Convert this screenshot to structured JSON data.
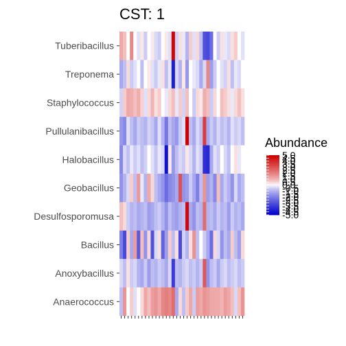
{
  "chart_data": {
    "type": "heatmap",
    "title": "CST: 1",
    "xlabel": "",
    "ylabel": "",
    "rows": [
      "Tuberibacillus",
      "Treponema",
      "Staphylococcus",
      "Pullulanibacillus",
      "Halobacillus",
      "Geobacillus",
      "Desulfosporomusa",
      "Bacillus",
      "Anoxybacillus",
      "Anaerococcus"
    ],
    "n_columns": 36,
    "values": [
      [
        1.2,
        0.8,
        0,
        1.8,
        0,
        -0.3,
        0.2,
        -0.6,
        0,
        0.2,
        -0.4,
        -0.6,
        0,
        0.2,
        -0.3,
        4.8,
        -0.5,
        0.3,
        -0.2,
        -1,
        0.6,
        -0.3,
        0.4,
        -0.8,
        -3,
        -3.2,
        -2.4,
        0,
        -0.6,
        0.3,
        -0.2,
        -0.4,
        0.3,
        0.6,
        0,
        -0.3
      ],
      [
        -1.2,
        -0.8,
        0.4,
        -0.6,
        -0.3,
        0,
        -0.8,
        0,
        0.2,
        -0.3,
        -0.6,
        -0.2,
        0.3,
        -0.8,
        -0.2,
        -4.2,
        -0.4,
        -1,
        0.2,
        -1.5,
        0,
        -0.2,
        -0.4,
        -1.2,
        -0.4,
        1.8,
        -1.4,
        -0.6,
        0,
        -0.3,
        -0.5,
        0.3,
        -0.8,
        -0.2,
        -0.4,
        0
      ],
      [
        -0.5,
        0.6,
        1.2,
        1.1,
        0.8,
        1.1,
        0.5,
        -0.3,
        0.4,
        1,
        0.3,
        0.6,
        0,
        -0.2,
        0.4,
        0.8,
        -0.2,
        0.6,
        -0.5,
        0.8,
        0,
        -0.6,
        0.4,
        0.2,
        1.1,
        0.8,
        -0.6,
        0.4,
        0,
        0.8,
        0.6,
        0.3,
        -0.2,
        0.4,
        0.8,
        0.3
      ],
      [
        -1.5,
        -1.8,
        -0.3,
        -0.8,
        -1.2,
        -0.6,
        -0.8,
        -1,
        -0.5,
        -0.7,
        -1.2,
        -0.3,
        -1,
        -2.2,
        -0.8,
        -1.2,
        -1.5,
        -0.6,
        -0.3,
        5,
        -0.8,
        -1.2,
        -0.4,
        -0.8,
        3.5,
        -1.2,
        -0.6,
        -1,
        -0.4,
        -0.8,
        -0.6,
        -1,
        -0.3,
        -0.6,
        -0.4,
        -0.8
      ],
      [
        -1.8,
        -0.4,
        -0.8,
        -0.2,
        -0.6,
        -0.3,
        -0.8,
        -0.5,
        0,
        -0.3,
        -0.7,
        -0.2,
        -0.4,
        -4.5,
        0.2,
        -1.5,
        -0.8,
        -0.4,
        -0.6,
        0.2,
        -0.4,
        -1,
        -0.3,
        -0.6,
        -3.8,
        -4,
        -1.2,
        -0.3,
        -0.6,
        0,
        -0.4,
        -0.8,
        0,
        0.3,
        -0.2,
        0
      ],
      [
        -1.6,
        -1,
        -0.4,
        0.6,
        -0.8,
        1.5,
        -0.2,
        -1,
        1.2,
        0.4,
        -0.8,
        -1.2,
        -1.6,
        -2.4,
        -1.8,
        -1.6,
        -1.2,
        3,
        -1.6,
        -1.4,
        -0.6,
        -1.2,
        -2,
        -0.8,
        1.6,
        -1.4,
        -1,
        -1.8,
        0.8,
        -1.2,
        -0.6,
        -1,
        -1.6,
        -0.4,
        -1.2,
        -0.8
      ],
      [
        0.8,
        0.4,
        -0.6,
        -1,
        -0.8,
        -1.2,
        -1,
        -0.8,
        -1.4,
        -1.2,
        -0.8,
        -0.6,
        -1,
        -1.6,
        -0.8,
        -1.2,
        -1.4,
        -1,
        -0.8,
        4.8,
        -1.2,
        -1.6,
        -0.8,
        -1,
        2.4,
        -1,
        -0.8,
        -1.2,
        -0.6,
        -1,
        -0.8,
        -1.4,
        -0.6,
        -1,
        -0.8,
        -1.2
      ],
      [
        -2,
        -3.2,
        0.6,
        -1.2,
        1.4,
        -2.8,
        0.8,
        -1.6,
        0.4,
        -3,
        -0.4,
        0.3,
        -2.6,
        -1.4,
        0.6,
        -0.8,
        0.3,
        -3.2,
        -0.5,
        -1,
        0.3,
        1.6,
        -0.8,
        0,
        -0.6,
        -1.2,
        -2.4,
        0.4,
        -0.4,
        -1.6,
        -0.8,
        -1.2,
        0.6,
        -0.8,
        -1.4,
        0.4
      ],
      [
        -0.4,
        -0.8,
        0.3,
        -0.6,
        -0.4,
        -1,
        -1.2,
        -0.6,
        -1.4,
        -0.8,
        -1,
        -0.6,
        -0.8,
        -1.2,
        -0.4,
        -3.5,
        -0.8,
        -1,
        -0.6,
        -0.4,
        -0.8,
        -0.6,
        -1,
        -0.6,
        2.8,
        -1.6,
        -0.8,
        -0.6,
        -1.2,
        -0.6,
        -0.4,
        -0.8,
        -0.6,
        -0.4,
        -0.8,
        -0.6
      ],
      [
        -0.8,
        1.6,
        0,
        0.6,
        -0.3,
        0,
        0.4,
        1.2,
        0.8,
        1.4,
        1.6,
        1.2,
        1.8,
        2,
        1.8,
        2.4,
        -1.2,
        0.4,
        -0.8,
        0.6,
        1.2,
        -0.6,
        1.4,
        1.2,
        1.6,
        1.4,
        1.2,
        1.2,
        1.2,
        1,
        1.4,
        1.2,
        0.8,
        -0.4,
        0.8,
        1.6
      ]
    ],
    "legend": {
      "title": "Abundance",
      "position": "right",
      "breaks": [
        "5.0",
        "4.5",
        "4.0",
        "3.5",
        "3.0",
        "2.5",
        "2.0",
        "1.5",
        "1.0",
        "0.5",
        "0.0",
        "-0.5",
        "-1.0",
        "-1.5",
        "-2.0",
        "-2.5",
        "-3.0",
        "-3.5",
        "-4.0",
        "-4.5",
        "-5.0"
      ],
      "range": [
        -5,
        5
      ]
    },
    "colors": {
      "low": "#0000cc",
      "mid": "#ffffff",
      "high": "#cc0000"
    }
  }
}
